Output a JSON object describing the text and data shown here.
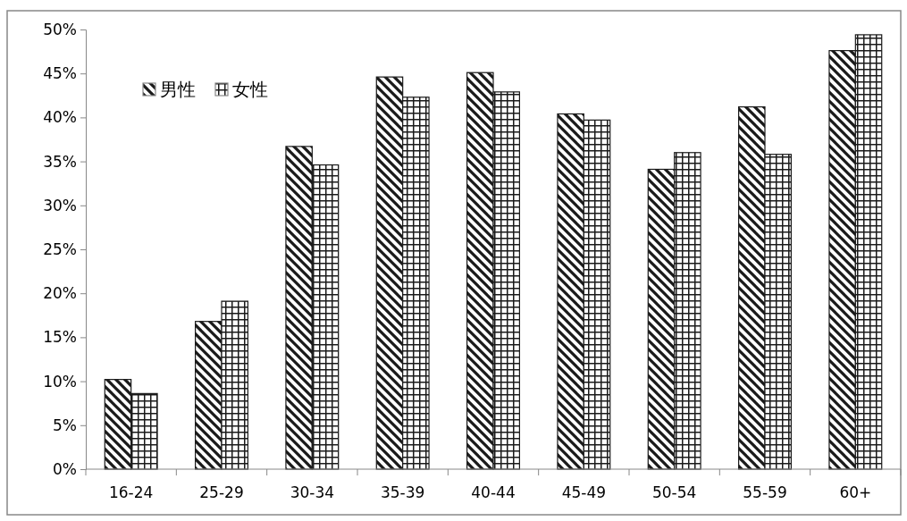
{
  "chart_data": {
    "type": "bar",
    "categories": [
      "16-24",
      "25-29",
      "30-34",
      "35-39",
      "40-44",
      "45-49",
      "50-54",
      "55-59",
      "60+"
    ],
    "series": [
      {
        "name": "男性",
        "color": "#1a1a1a",
        "values": [
          10.2,
          16.8,
          36.7,
          44.6,
          45.1,
          40.4,
          34.1,
          41.2,
          47.6
        ]
      },
      {
        "name": "女性",
        "color": "#1a1a1a",
        "values": [
          8.6,
          19.1,
          34.6,
          42.3,
          42.9,
          39.7,
          36.0,
          35.8,
          49.4
        ]
      }
    ],
    "ylim": [
      0,
      50
    ],
    "yticks": [
      {
        "value": 0,
        "label": "0%"
      },
      {
        "value": 5,
        "label": "5%"
      },
      {
        "value": 10,
        "label": "10%"
      },
      {
        "value": 15,
        "label": "15%"
      },
      {
        "value": 20,
        "label": "20%"
      },
      {
        "value": 25,
        "label": "25%"
      },
      {
        "value": 30,
        "label": "30%"
      },
      {
        "value": 35,
        "label": "35%"
      },
      {
        "value": 40,
        "label": "40%"
      },
      {
        "value": 45,
        "label": "45%"
      },
      {
        "value": 50,
        "label": "50%"
      }
    ],
    "grid": false,
    "legend": "top left"
  }
}
